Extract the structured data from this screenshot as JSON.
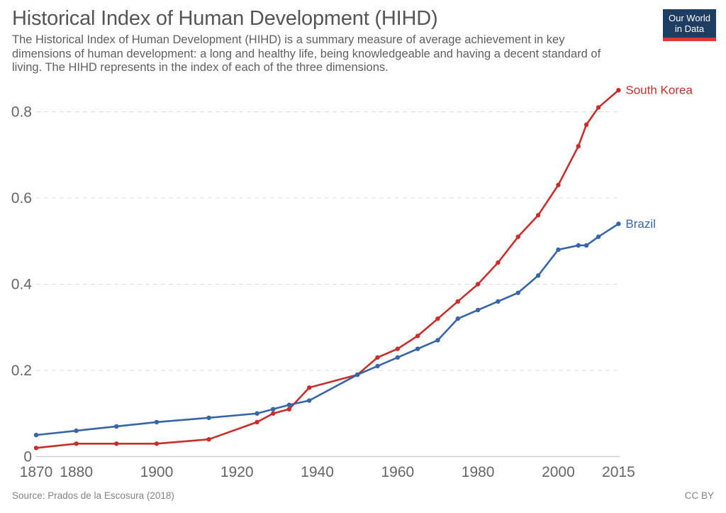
{
  "header": {
    "title": "Historical Index of Human Development (HIHD)",
    "subtitle_lines": [
      "The Historical Index of Human Development (HIHD) is a summary measure of average achievement in key",
      "dimensions of human development: a long and healthy life, being knowledgeable and having a decent standard of",
      "living. The HIHD represents in the index of each of the three dimensions."
    ],
    "logo": {
      "line1": "Our World",
      "line2": "in Data",
      "bg_color": "#1d3d63",
      "stripe_color": "#e0373c",
      "text_color": "#ffffff"
    }
  },
  "chart_data": {
    "type": "line",
    "x": [
      1870,
      1880,
      1890,
      1900,
      1913,
      1925,
      1929,
      1933,
      1938,
      1950,
      1955,
      1960,
      1965,
      1970,
      1975,
      1980,
      1985,
      1990,
      1995,
      2000,
      2005,
      2007,
      2010,
      2015
    ],
    "series": [
      {
        "name": "South Korea",
        "color": "#c62f2c",
        "values": [
          0.02,
          0.03,
          0.03,
          0.03,
          0.04,
          0.08,
          0.1,
          0.11,
          0.16,
          0.19,
          0.23,
          0.25,
          0.28,
          0.32,
          0.36,
          0.4,
          0.45,
          0.51,
          0.56,
          0.63,
          0.72,
          0.77,
          0.81,
          0.85
        ]
      },
      {
        "name": "Brazil",
        "color": "#3665a9",
        "values": [
          0.05,
          0.06,
          0.07,
          0.08,
          0.09,
          0.1,
          0.11,
          0.12,
          0.13,
          0.19,
          0.21,
          0.23,
          0.25,
          0.27,
          0.32,
          0.34,
          0.36,
          0.38,
          0.42,
          0.48,
          0.49,
          0.49,
          0.51,
          0.54
        ]
      }
    ],
    "xticks": [
      1870,
      1880,
      1900,
      1920,
      1940,
      1960,
      1980,
      2000,
      2015
    ],
    "yticks": [
      0,
      0.2,
      0.4,
      0.6,
      0.8
    ],
    "xlim": [
      1870,
      2015
    ],
    "ylim": [
      0,
      0.85
    ],
    "grid": "horizontal dashed",
    "legend_position": "end-of-line labels",
    "style": {
      "tick_color": "#666666",
      "grid_color": "#dddddd",
      "axis_color": "#c9c9c9",
      "tick_font_size": 21,
      "series_label_font_size": 17
    }
  },
  "footer": {
    "source": "Source: Prados de la Escosura (2018)",
    "license": "CC BY"
  }
}
